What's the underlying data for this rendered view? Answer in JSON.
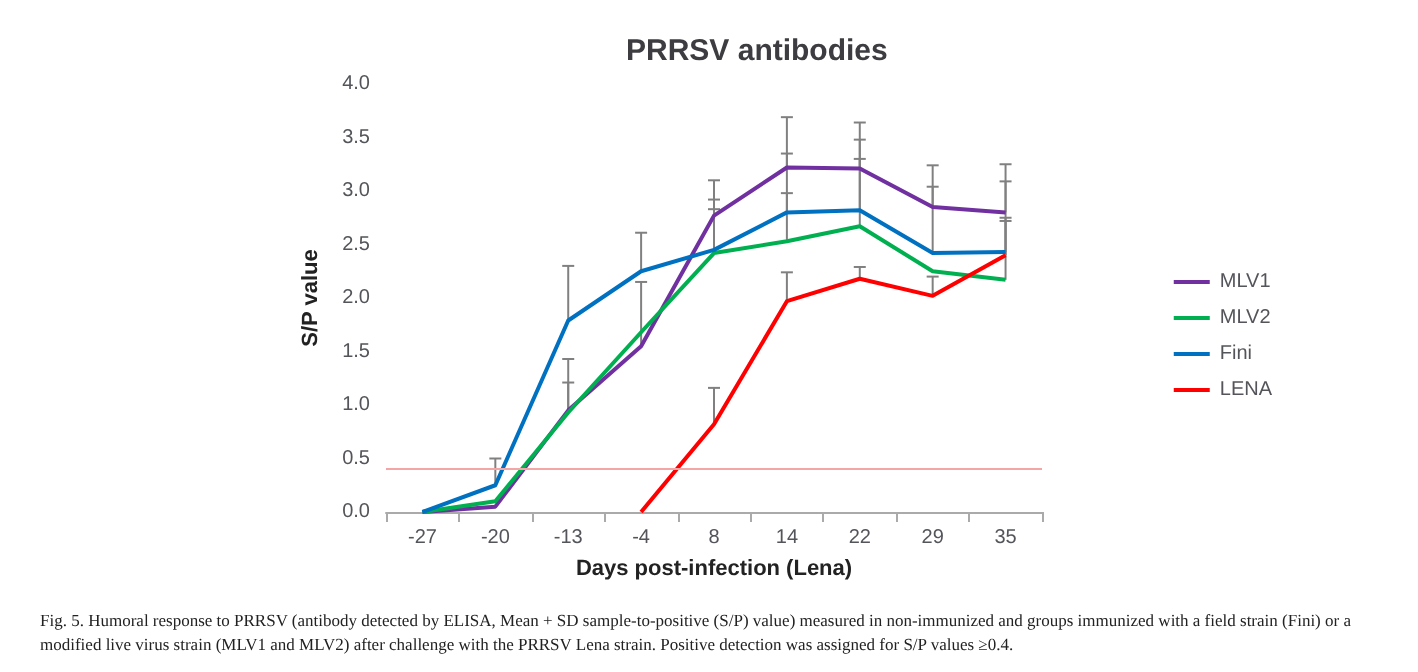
{
  "chart_data": {
    "type": "line",
    "title": "PRRSV antibodies",
    "xlabel": "Days post-infection (Lena)",
    "ylabel": "S/P value",
    "categories": [
      "-27",
      "-20",
      "-13",
      "-4",
      "8",
      "14",
      "22",
      "29",
      "35"
    ],
    "series": [
      {
        "name": "MLV1",
        "color": "#7030a0",
        "values": [
          0,
          0.05,
          0.95,
          1.55,
          2.77,
          3.22,
          3.21,
          2.85,
          2.8
        ],
        "errors": [
          null,
          null,
          [
            0.95,
            1.43
          ],
          [
            1.55,
            2.15
          ],
          [
            2.77,
            3.1
          ],
          [
            3.22,
            3.69
          ],
          [
            3.21,
            3.64
          ],
          [
            2.85,
            3.24
          ],
          [
            2.8,
            3.25
          ]
        ]
      },
      {
        "name": "MLV2",
        "color": "#00b050",
        "values": [
          0,
          0.1,
          0.93,
          1.68,
          2.42,
          2.53,
          2.67,
          2.25,
          2.17
        ],
        "errors": [
          null,
          null,
          [
            0.93,
            1.21
          ],
          null,
          [
            2.42,
            2.83
          ],
          [
            2.53,
            2.98
          ],
          [
            2.67,
            3.3
          ],
          null,
          [
            2.17,
            2.75
          ]
        ]
      },
      {
        "name": "Fini",
        "color": "#0070c0",
        "values": [
          0,
          0.25,
          1.79,
          2.25,
          2.45,
          2.8,
          2.82,
          2.42,
          2.43
        ],
        "errors": [
          null,
          [
            0.25,
            0.5
          ],
          [
            1.79,
            2.3
          ],
          [
            2.25,
            2.61
          ],
          [
            2.45,
            2.92
          ],
          [
            2.8,
            3.35
          ],
          [
            2.82,
            3.48
          ],
          [
            2.42,
            3.04
          ],
          [
            2.43,
            3.09
          ]
        ]
      },
      {
        "name": "LENA",
        "color": "#ff0000",
        "values": [
          null,
          null,
          null,
          0,
          0.82,
          1.97,
          2.18,
          2.02,
          2.4
        ],
        "errors": [
          null,
          null,
          null,
          null,
          [
            0.82,
            1.16
          ],
          [
            1.97,
            2.24
          ],
          [
            2.18,
            2.29
          ],
          [
            2.02,
            2.2
          ],
          [
            2.4,
            2.72
          ]
        ]
      }
    ],
    "ylim": [
      0,
      4
    ],
    "yticks": [
      {
        "value": 0,
        "label": "0.0"
      },
      {
        "value": 0.5,
        "label": "0.5"
      },
      {
        "value": 1,
        "label": "1.0"
      },
      {
        "value": 1.5,
        "label": "1.5"
      },
      {
        "value": 2,
        "label": "2.0"
      },
      {
        "value": 2.5,
        "label": "2.5"
      },
      {
        "value": 3,
        "label": "3.0"
      },
      {
        "value": 3.5,
        "label": "3.5"
      },
      {
        "value": 4,
        "label": "4.0"
      }
    ],
    "ref_lines": [
      {
        "axis": "y",
        "value": 0.4,
        "color": "#f4a6a6"
      }
    ],
    "grid": false,
    "legend": "right",
    "marker": "none",
    "line_style": "solid",
    "annotations": [
      "Fig. 5. Humoral response to PRRSV (antibody detected by ELISA, Mean + SD sample-to-positive (S/P) value) measured in non-immunized and groups immunized with a field strain (Fini) or a modified live virus strain (MLV1 and MLV2) after challenge with the PRRSV Lena strain. Positive detection was assigned for S/P values ≥0.4."
    ]
  }
}
